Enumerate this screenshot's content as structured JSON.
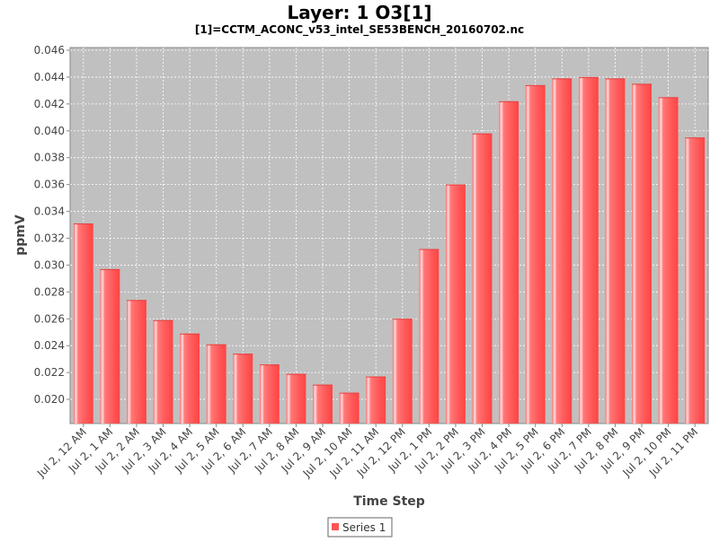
{
  "chart_data": {
    "type": "bar",
    "title": "Layer: 1 O3[1]",
    "subtitle": "[1]=CCTM_ACONC_v53_intel_SE53BENCH_20160702.nc",
    "xlabel": "Time Step",
    "ylabel": "ppmV",
    "ylim": [
      0.0182,
      0.0462
    ],
    "yticks": [
      "0.020",
      "0.022",
      "0.024",
      "0.026",
      "0.028",
      "0.030",
      "0.032",
      "0.034",
      "0.036",
      "0.038",
      "0.040",
      "0.042",
      "0.044",
      "0.046"
    ],
    "grid": true,
    "legend_position": "bottom",
    "categories": [
      "Jul 2, 12 AM",
      "Jul 2, 1 AM",
      "Jul 2, 2 AM",
      "Jul 2, 3 AM",
      "Jul 2, 4 AM",
      "Jul 2, 5 AM",
      "Jul 2, 6 AM",
      "Jul 2, 7 AM",
      "Jul 2, 8 AM",
      "Jul 2, 9 AM",
      "Jul 2, 10 AM",
      "Jul 2, 11 AM",
      "Jul 2, 12 PM",
      "Jul 2, 1 PM",
      "Jul 2, 2 PM",
      "Jul 2, 3 PM",
      "Jul 2, 4 PM",
      "Jul 2, 5 PM",
      "Jul 2, 6 PM",
      "Jul 2, 7 PM",
      "Jul 2, 8 PM",
      "Jul 2, 9 PM",
      "Jul 2, 10 PM",
      "Jul 2, 11 PM"
    ],
    "series": [
      {
        "name": "Series 1",
        "color": "#ff5555",
        "values": [
          0.0331,
          0.0297,
          0.0274,
          0.0259,
          0.0249,
          0.0241,
          0.0234,
          0.0226,
          0.0219,
          0.0211,
          0.0205,
          0.0217,
          0.026,
          0.0312,
          0.036,
          0.0398,
          0.0422,
          0.0434,
          0.0439,
          0.044,
          0.0439,
          0.0435,
          0.0425,
          0.0395
        ]
      }
    ]
  },
  "colors": {
    "plot_background": "#c0c0c0",
    "gridline": "#ffffff",
    "bar_fill": "#ff5555",
    "bar_highlight": "#ffdada"
  }
}
